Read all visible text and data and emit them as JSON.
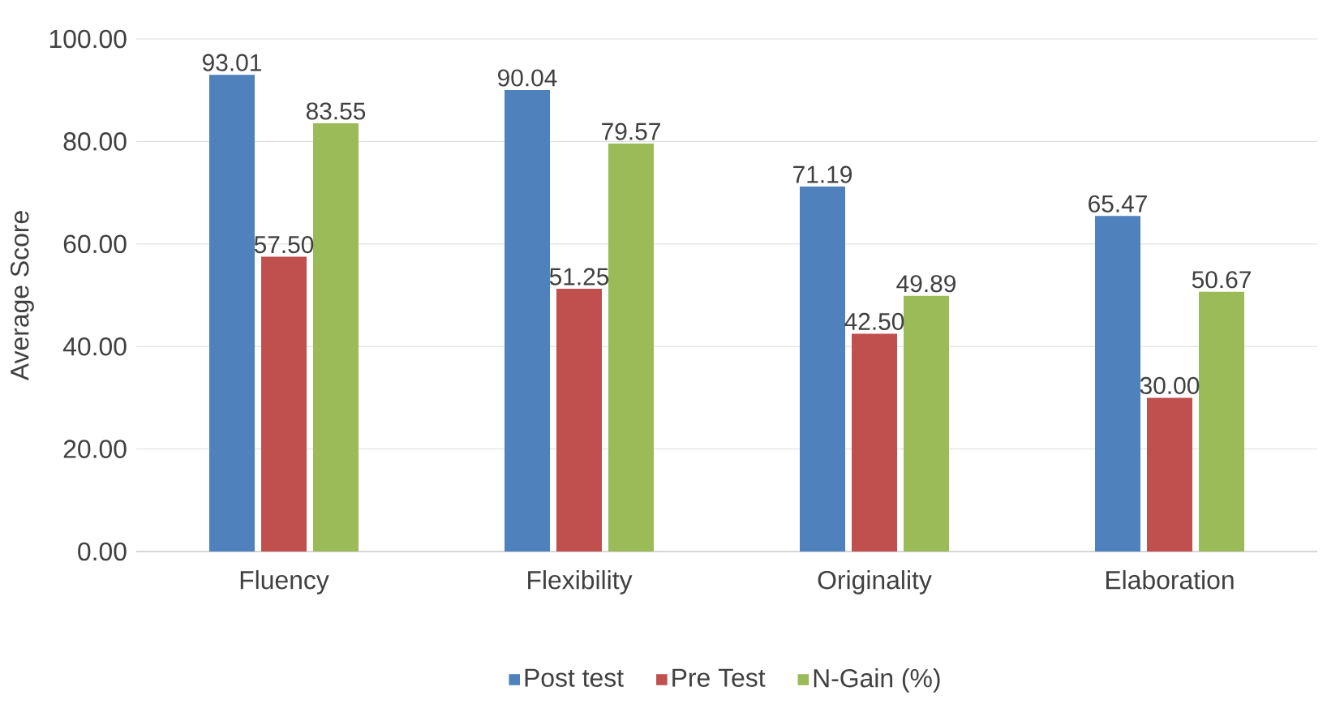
{
  "chart_data": {
    "type": "bar",
    "ylabel": "Average Score",
    "categories": [
      "Fluency",
      "Flexibility",
      "Originality",
      "Elaboration"
    ],
    "series": [
      {
        "name": "Post test",
        "color": "#4f81bd",
        "values": [
          93.01,
          90.04,
          71.19,
          65.47
        ],
        "value_labels": [
          "93.01",
          "90.04",
          "71.19",
          "65.47"
        ]
      },
      {
        "name": "Pre Test",
        "color": "#c0504d",
        "values": [
          57.5,
          51.25,
          42.5,
          30.0
        ],
        "value_labels": [
          "57.50",
          "51.25",
          "42.50",
          "30.00"
        ]
      },
      {
        "name": "N-Gain (%)",
        "color": "#9bbb59",
        "values": [
          83.55,
          79.57,
          49.89,
          50.67
        ],
        "value_labels": [
          "83.55",
          "79.57",
          "49.89",
          "50.67"
        ]
      }
    ],
    "ylim": [
      0,
      100
    ],
    "yticks": [
      {
        "value": 0,
        "label": "0.00"
      },
      {
        "value": 20,
        "label": "20.00"
      },
      {
        "value": 40,
        "label": "40.00"
      },
      {
        "value": 60,
        "label": "60.00"
      },
      {
        "value": 80,
        "label": "80.00"
      },
      {
        "value": 100,
        "label": "100.00"
      }
    ],
    "grid": "y",
    "legend": "bottom"
  }
}
